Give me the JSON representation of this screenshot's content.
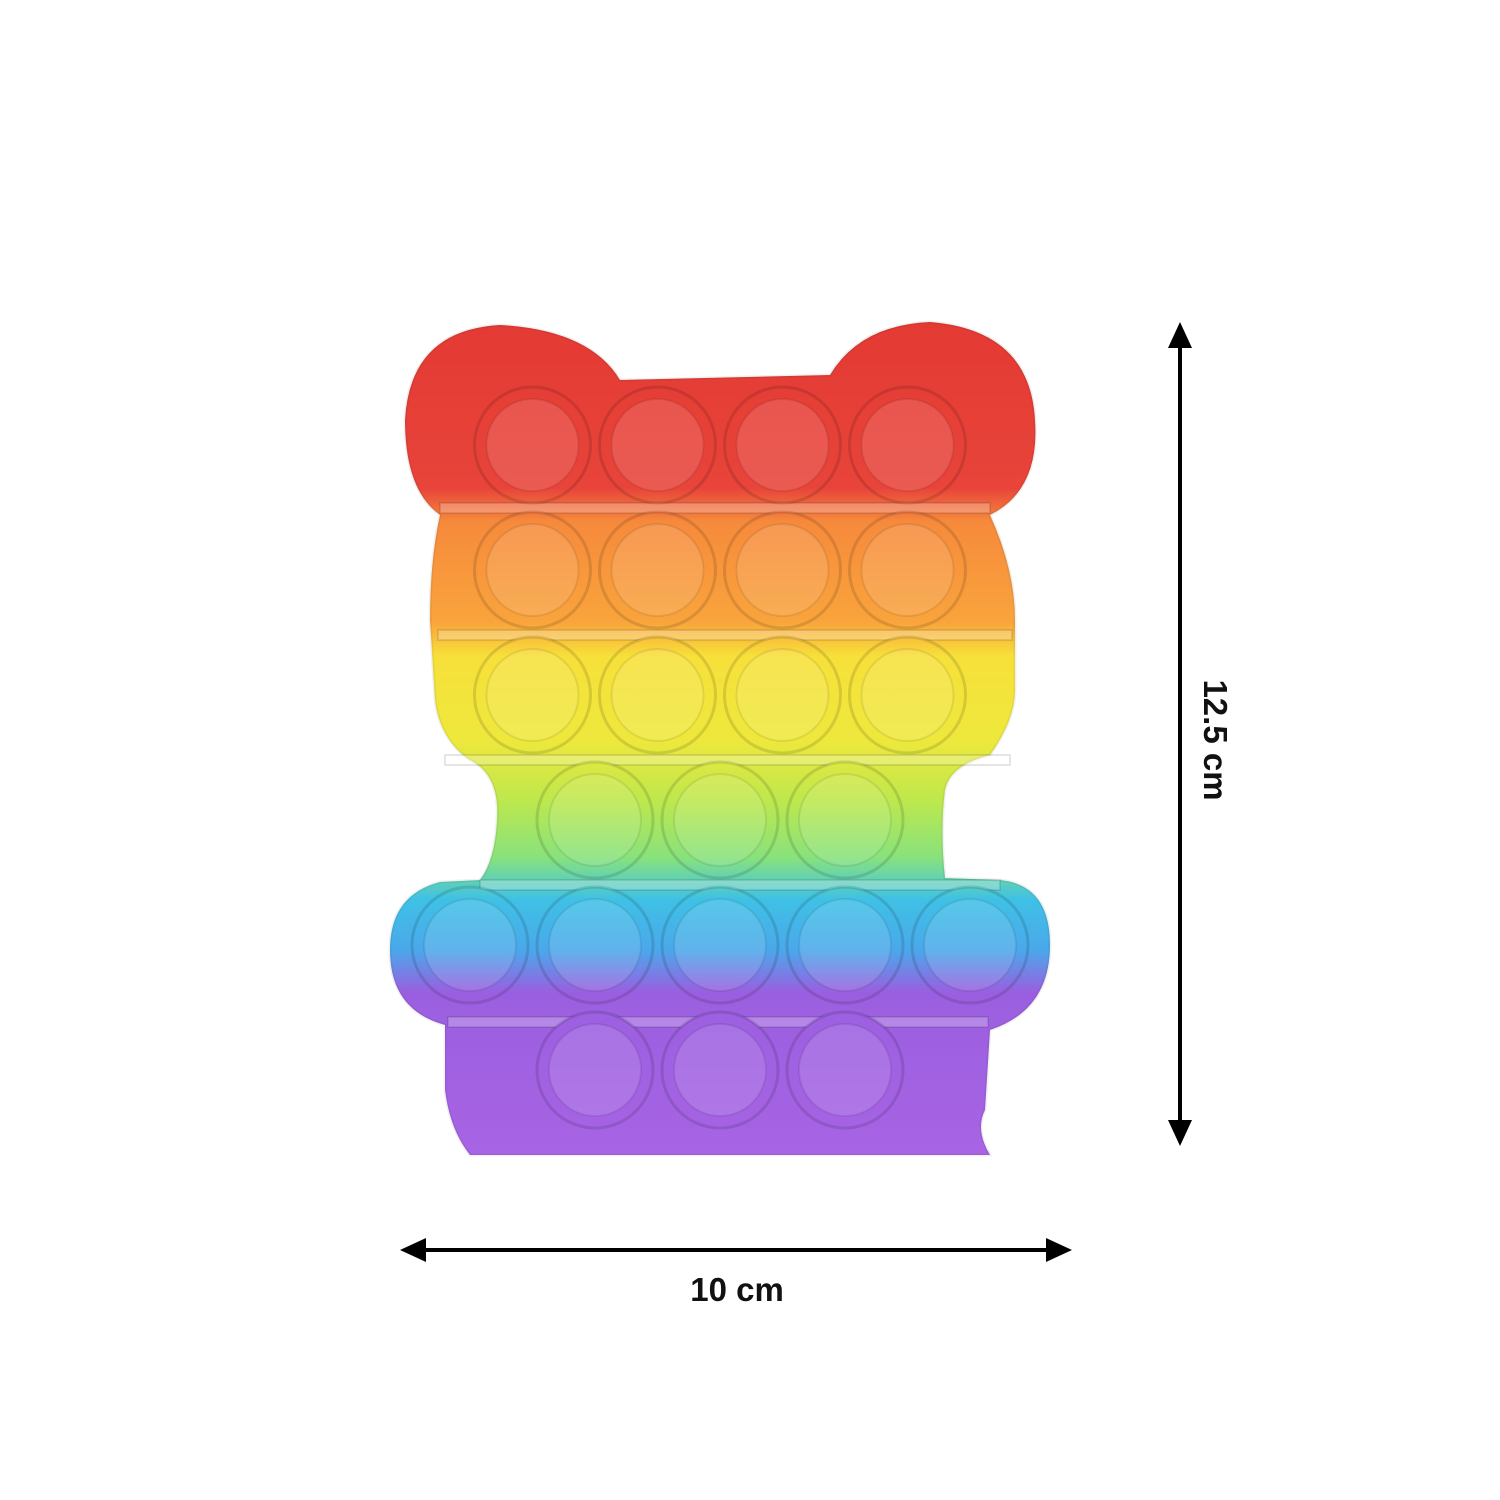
{
  "product": {
    "name_icon": "bear-pop-it-toy",
    "colors": [
      "#e53a34",
      "#f7913f",
      "#f6e23a",
      "#b7e84a",
      "#3eb8e8",
      "#a45ee0"
    ],
    "bubble_rows": [
      4,
      4,
      4,
      3,
      5,
      3
    ]
  },
  "dimensions": {
    "width_label": "10 cm",
    "height_label": "12.5 cm"
  }
}
